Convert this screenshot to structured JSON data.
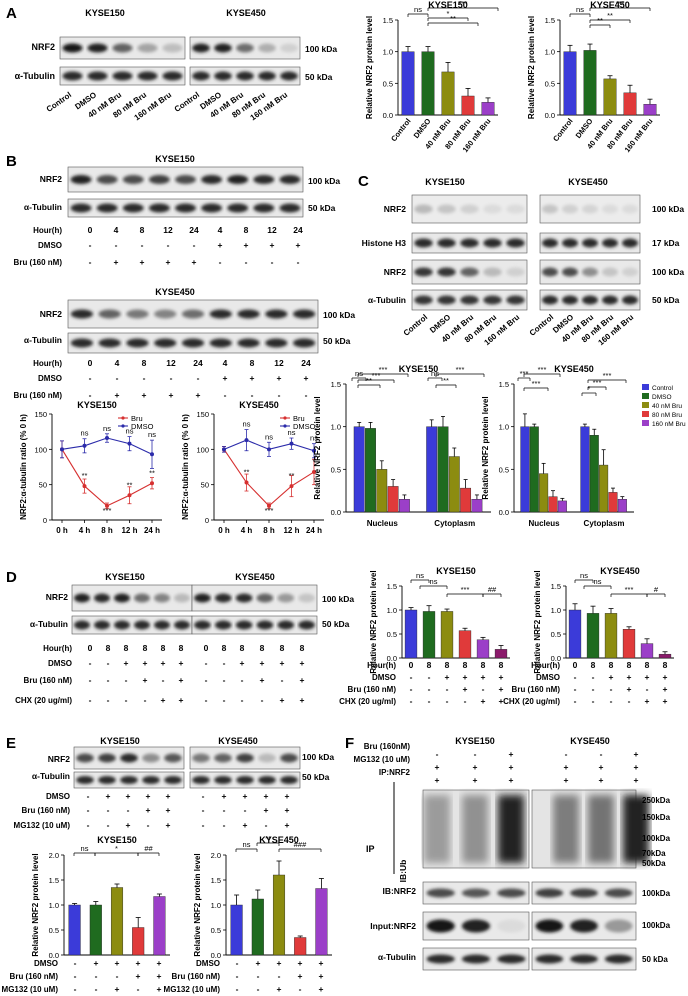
{
  "panel_letters": [
    "A",
    "B",
    "C",
    "D",
    "E",
    "F"
  ],
  "common": {
    "kyse150": "KYSE150",
    "kyse450": "KYSE450",
    "nrf2": "NRF2",
    "tubulin": "α-Tubulin",
    "histone": "Histone H3",
    "kda100": "100 kDa",
    "kda50": "50 kDa",
    "kda17": "17 kDa",
    "ylabel_rel": "Relative NRF2 protein level",
    "ylabel_ratio": "NRF2:α-tubulin ratio (% 0 h)"
  },
  "panelA": {
    "lanes": [
      "Control",
      "DMSO",
      "40 nM Bru",
      "80 nM Bru",
      "160 nM Bru"
    ]
  },
  "panelB": {
    "hour_label": "Hour(h)",
    "hours": [
      "0",
      "4",
      "8",
      "12",
      "24",
      "4",
      "8",
      "12",
      "24"
    ],
    "dmso_label": "DMSO",
    "dmso_signs": [
      "-",
      "-",
      "-",
      "-",
      "-",
      "+",
      "+",
      "+",
      "+"
    ],
    "bru_label": "Bru (160 nM)",
    "bru_signs": [
      "-",
      "+",
      "+",
      "+",
      "+",
      "-",
      "-",
      "-",
      "-"
    ]
  },
  "panelC": {
    "lanes": [
      "Control",
      "DMSO",
      "40 nM Bru",
      "80 nM Bru",
      "160 nM Bru"
    ],
    "groups": [
      "Nucleus",
      "Cytoplasm"
    ],
    "legend": [
      "Control",
      "DMSO",
      "40 nM Bru",
      "80 nM Bru",
      "160 nM Bru"
    ]
  },
  "panelD": {
    "hour_label": "Hour(h)",
    "hours": [
      "0",
      "8",
      "8",
      "8",
      "8",
      "8"
    ],
    "dmso_label": "DMSO",
    "dmso_signs": [
      "-",
      "-",
      "+",
      "+",
      "+",
      "+"
    ],
    "bru_label": "Bru (160 nM)",
    "bru_signs": [
      "-",
      "-",
      "-",
      "+",
      "-",
      "+"
    ],
    "chx_label": "CHX (20 ug/ml)",
    "chx_signs": [
      "-",
      "-",
      "-",
      "-",
      "+",
      "+"
    ],
    "chart_chx_label": "CHX (20 ug/ml)"
  },
  "panelE": {
    "dmso_label": "DMSO",
    "dmso_signs": [
      "-",
      "+",
      "+",
      "+",
      "+"
    ],
    "bru_label": "Bru (160 nM)",
    "bru_signs": [
      "-",
      "-",
      "-",
      "+",
      "+"
    ],
    "mg_label": "MG132 (10 uM)",
    "mg_signs": [
      "-",
      "-",
      "+",
      "-",
      "+"
    ]
  },
  "panelF": {
    "bru_label": "Bru (160nM)",
    "bru_signs": [
      "-",
      "-",
      "+"
    ],
    "mg_label": "MG132 (10 uM)",
    "mg_signs": [
      "+",
      "+",
      "+"
    ],
    "ip_label": "IP:NRF2",
    "ip_signs": [
      "+",
      "+",
      "+"
    ],
    "ip_side": "IP",
    "ib_ub": "IB:Ub",
    "ib_nrf2": "IB:NRF2",
    "input_nrf2": "Input:NRF2",
    "markers": [
      "250kDa",
      "150kDa",
      "100kDa",
      "70kDa",
      "50kDa"
    ],
    "kda100": "100kDa",
    "kda50": "50 kDa"
  },
  "colors": {
    "control": "#3b3bd9",
    "dmso": "#1f6b1f",
    "bru40": "#8c8c10",
    "bru80": "#e03a3a",
    "bru160": "#9b3fc8",
    "bru_line": "#d63030",
    "dmso_line": "#2b2baa"
  },
  "chart_data": [
    {
      "id": "A1",
      "type": "bar",
      "title": "KYSE150",
      "ylabel": "Relative NRF2 protein level",
      "ylim": [
        0,
        1.5
      ],
      "yticks": [
        "0.0",
        "0.5",
        "1.0",
        "1.5"
      ],
      "categories": [
        "Control",
        "DMSO",
        "40 nM Bru",
        "80 nM Bru",
        "160 nM Bru"
      ],
      "values": [
        1.0,
        1.0,
        0.68,
        0.3,
        0.2
      ],
      "errors": [
        0.08,
        0.08,
        0.15,
        0.12,
        0.07
      ],
      "sig": [
        "ns",
        "*",
        "**",
        "***"
      ]
    },
    {
      "id": "A2",
      "type": "bar",
      "title": "KYSE450",
      "ylabel": "Relative NRF2 protein level",
      "ylim": [
        0,
        1.5
      ],
      "yticks": [
        "0.0",
        "0.5",
        "1.0",
        "1.5"
      ],
      "categories": [
        "Control",
        "DMSO",
        "40 nM Bru",
        "80 nM Bru",
        "160 nM Bru"
      ],
      "values": [
        1.0,
        1.02,
        0.57,
        0.35,
        0.17
      ],
      "errors": [
        0.1,
        0.1,
        0.05,
        0.12,
        0.08
      ],
      "sig": [
        "ns",
        "**",
        "**",
        "***"
      ]
    },
    {
      "id": "B1",
      "type": "line",
      "title": "KYSE150",
      "ylabel": "NRF2:α-tubulin ratio (% 0 h)",
      "ylim": [
        0,
        150
      ],
      "yticks": [
        "0",
        "50",
        "100",
        "150"
      ],
      "x": [
        "0 h",
        "4 h",
        "8 h",
        "12 h",
        "24 h"
      ],
      "series": [
        {
          "name": "Bru",
          "values": [
            100,
            48,
            20,
            35,
            52
          ],
          "errors": [
            12,
            10,
            4,
            12,
            8
          ],
          "marks": [
            "",
            "**",
            "***",
            "**",
            "**"
          ]
        },
        {
          "name": "DMSO",
          "values": [
            100,
            105,
            116,
            108,
            93
          ],
          "errors": [
            12,
            10,
            6,
            10,
            20
          ],
          "marks": [
            "",
            "ns",
            "ns",
            "ns",
            "ns"
          ]
        }
      ]
    },
    {
      "id": "B2",
      "type": "line",
      "title": "KYSE450",
      "ylabel": "NRF2:α-tubulin ratio (% 0 h)",
      "ylim": [
        0,
        150
      ],
      "yticks": [
        "0",
        "50",
        "100",
        "150"
      ],
      "x": [
        "0 h",
        "4 h",
        "8 h",
        "12 h",
        "24 h"
      ],
      "series": [
        {
          "name": "Bru",
          "values": [
            100,
            53,
            20,
            48,
            68
          ],
          "errors": [
            4,
            12,
            4,
            15,
            18
          ],
          "marks": [
            "",
            "**",
            "***",
            "**",
            "*"
          ]
        },
        {
          "name": "DMSO",
          "values": [
            100,
            113,
            100,
            108,
            98
          ],
          "errors": [
            4,
            15,
            10,
            8,
            10
          ],
          "marks": [
            "",
            "ns",
            "ns",
            "ns",
            "ns"
          ]
        }
      ]
    },
    {
      "id": "C1",
      "type": "bar",
      "title": "KYSE150",
      "ylabel": "Relative NRF2 protein level",
      "ylim": [
        0,
        1.5
      ],
      "yticks": [
        "0.0",
        "0.5",
        "1.0",
        "1.5"
      ],
      "categories": [
        "Nucleus",
        "Cytoplasm"
      ],
      "series": [
        {
          "name": "Control",
          "values": [
            1.0,
            1.0
          ],
          "errors": [
            0.05,
            0.08
          ]
        },
        {
          "name": "DMSO",
          "values": [
            0.98,
            1.0
          ],
          "errors": [
            0.07,
            0.12
          ]
        },
        {
          "name": "40 nM Bru",
          "values": [
            0.5,
            0.65
          ],
          "errors": [
            0.1,
            0.1
          ]
        },
        {
          "name": "80 nM Bru",
          "values": [
            0.3,
            0.28
          ],
          "errors": [
            0.08,
            0.1
          ]
        },
        {
          "name": "160 nM Bru",
          "values": [
            0.15,
            0.15
          ],
          "errors": [
            0.05,
            0.05
          ]
        }
      ],
      "sig": [
        "ns",
        "**",
        "***",
        "***",
        "ns",
        "**",
        "***"
      ]
    },
    {
      "id": "C2",
      "type": "bar",
      "title": "KYSE450",
      "ylabel": "Relative NRF2 protein level",
      "ylim": [
        0,
        1.5
      ],
      "yticks": [
        "0.0",
        "0.5",
        "1.0",
        "1.5"
      ],
      "categories": [
        "Nucleus",
        "Cytoplasm"
      ],
      "series": [
        {
          "name": "Control",
          "values": [
            1.0,
            1.0
          ],
          "errors": [
            0.15,
            0.03
          ]
        },
        {
          "name": "DMSO",
          "values": [
            1.0,
            0.9
          ],
          "errors": [
            0.03,
            0.07
          ]
        },
        {
          "name": "40 nM Bru",
          "values": [
            0.45,
            0.55
          ],
          "errors": [
            0.12,
            0.18
          ]
        },
        {
          "name": "80 nM Bru",
          "values": [
            0.18,
            0.23
          ],
          "errors": [
            0.07,
            0.05
          ]
        },
        {
          "name": "160 nM Bru",
          "values": [
            0.13,
            0.15
          ],
          "errors": [
            0.03,
            0.03
          ]
        }
      ],
      "sig": [
        "***",
        "***",
        "***",
        "*",
        "***",
        "***"
      ]
    },
    {
      "id": "D1",
      "type": "bar",
      "title": "KYSE150",
      "ylabel": "Relative NRF2 protein level",
      "ylim": [
        0,
        1.5
      ],
      "yticks": [
        "0.0",
        "0.5",
        "1.0",
        "1.5"
      ],
      "categories": [
        "0 h",
        "8 h",
        "8 h DMSO",
        "8 h Bru",
        "8 h DMSO+CHX",
        "8 h Bru+CHX"
      ],
      "values": [
        1.0,
        0.97,
        0.97,
        0.57,
        0.38,
        0.18
      ],
      "errors": [
        0.05,
        0.12,
        0.05,
        0.05,
        0.05,
        0.08
      ],
      "sig": [
        "ns",
        "ns",
        "***",
        "##"
      ]
    },
    {
      "id": "D2",
      "type": "bar",
      "title": "KYSE450",
      "ylabel": "Relative NRF2 protein level",
      "ylim": [
        0,
        1.5
      ],
      "yticks": [
        "0.0",
        "0.5",
        "1.0",
        "1.5"
      ],
      "categories": [
        "0 h",
        "8 h",
        "8 h DMSO",
        "8 h Bru",
        "8 h DMSO+CHX",
        "8 h Bru+CHX"
      ],
      "values": [
        1.0,
        0.93,
        0.93,
        0.6,
        0.3,
        0.08
      ],
      "errors": [
        0.13,
        0.15,
        0.1,
        0.05,
        0.1,
        0.05
      ],
      "sig": [
        "ns",
        "ns",
        "***",
        "#"
      ]
    },
    {
      "id": "E1",
      "type": "bar",
      "title": "KYSE150",
      "ylabel": "Relative NRF2 protein level",
      "ylim": [
        0,
        2.0
      ],
      "yticks": [
        "0.0",
        "0.5",
        "1.0",
        "1.5",
        "2.0"
      ],
      "categories": [
        "Control",
        "DMSO",
        "MG132",
        "Bru",
        "Bru+MG132"
      ],
      "values": [
        1.0,
        1.0,
        1.35,
        0.55,
        1.17
      ],
      "errors": [
        0.03,
        0.07,
        0.07,
        0.2,
        0.05
      ],
      "sig": [
        "ns",
        "*",
        "##"
      ]
    },
    {
      "id": "E2",
      "type": "bar",
      "title": "KYSE450",
      "ylabel": "Relative NRF2 protein level",
      "ylim": [
        0,
        2.0
      ],
      "yticks": [
        "0.0",
        "0.5",
        "1.0",
        "1.5",
        "2.0"
      ],
      "categories": [
        "Control",
        "DMSO",
        "MG132",
        "Bru",
        "Bru+MG132"
      ],
      "values": [
        1.0,
        1.12,
        1.6,
        0.35,
        1.33
      ],
      "errors": [
        0.2,
        0.18,
        0.28,
        0.03,
        0.2
      ],
      "sig": [
        "ns",
        "**",
        "###"
      ]
    }
  ]
}
